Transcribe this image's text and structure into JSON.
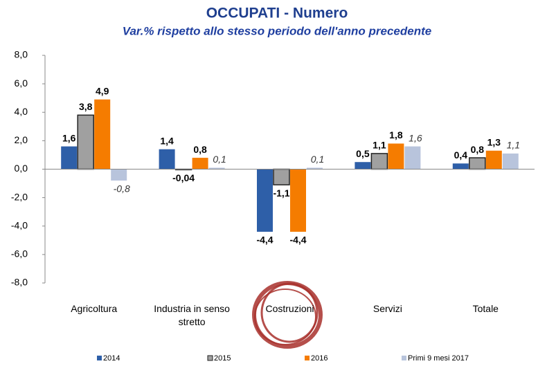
{
  "chart_data": {
    "type": "bar",
    "title": "OCCUPATI - Numero",
    "subtitle": "Var.% rispetto allo stesso periodo dell'anno precedente",
    "categories": [
      "Agricoltura",
      "Industria in senso stretto",
      "Costruzioni",
      "Servizi",
      "Totale"
    ],
    "series": [
      {
        "name": "2014",
        "color": "#2e5fa8",
        "values": [
          1.6,
          1.4,
          -4.4,
          0.5,
          0.4
        ],
        "value_labels": [
          "1,6",
          "1,4",
          "-4,4",
          "0,5",
          "0,4"
        ]
      },
      {
        "name": "2015",
        "color": "#a0a0a0",
        "values": [
          3.8,
          -0.04,
          -1.1,
          1.1,
          0.8
        ],
        "value_labels": [
          "3,8",
          "-0,04",
          "-1,1",
          "1,1",
          "0,8"
        ]
      },
      {
        "name": "2016",
        "color": "#f57c00",
        "values": [
          4.9,
          0.8,
          -4.4,
          1.8,
          1.3
        ],
        "value_labels": [
          "4,9",
          "0,8",
          "-4,4",
          "1,8",
          "1,3"
        ]
      },
      {
        "name": "Primi 9 mesi 2017",
        "color": "#b8c4dc",
        "values": [
          -0.8,
          0.1,
          0.1,
          1.6,
          1.1
        ],
        "value_labels": [
          "-0,8",
          "0,1",
          "0,1",
          "1,6",
          "1,1"
        ]
      }
    ],
    "ylim": [
      -8,
      8
    ],
    "yticks": [
      {
        "value": -8,
        "label": "-8,0"
      },
      {
        "value": -6,
        "label": "-6,0"
      },
      {
        "value": -4,
        "label": "-4,0"
      },
      {
        "value": -2,
        "label": "-2,0"
      },
      {
        "value": 0,
        "label": "0,0"
      },
      {
        "value": 2,
        "label": "2,0"
      },
      {
        "value": 4,
        "label": "4,0"
      },
      {
        "value": 6,
        "label": "6,0"
      },
      {
        "value": 8,
        "label": "8,0"
      }
    ],
    "grid": false,
    "legend": "bottom"
  }
}
